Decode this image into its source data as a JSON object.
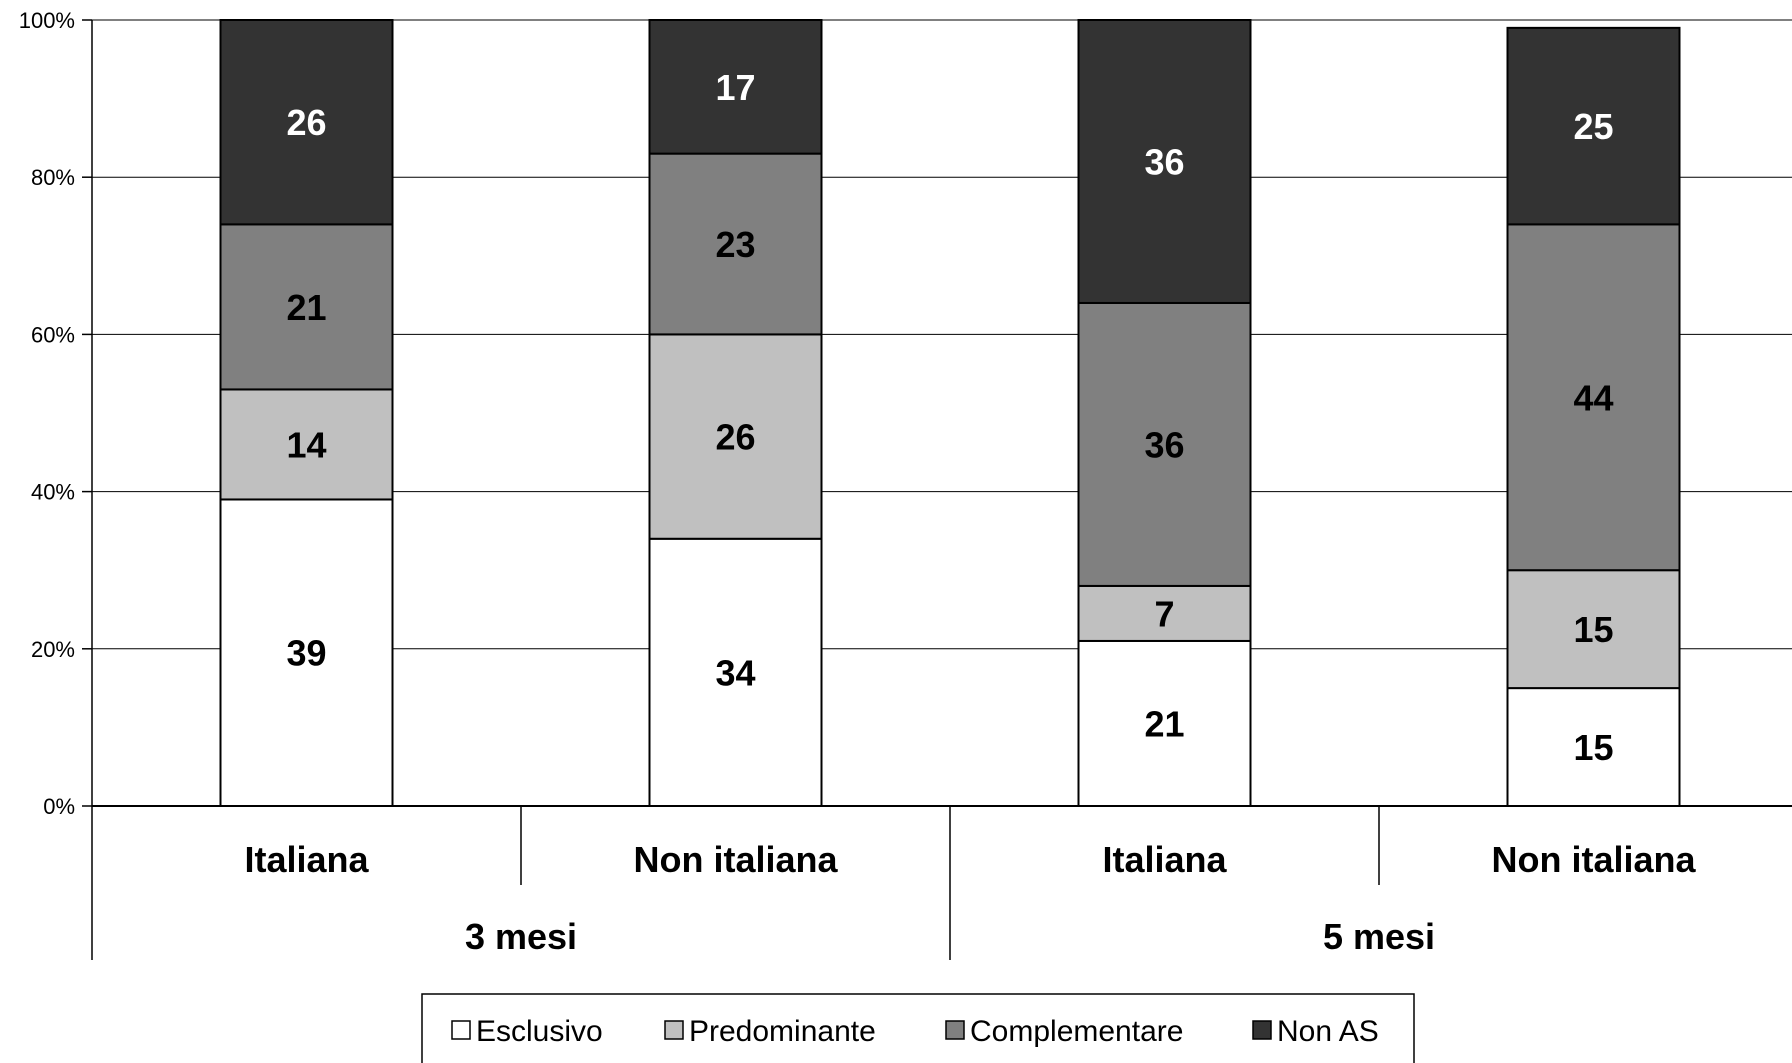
{
  "chart_data": {
    "type": "bar",
    "stacked": true,
    "percent_stacked": true,
    "title": "",
    "xlabel": "",
    "ylabel": "",
    "ylim": [
      0,
      100
    ],
    "y_ticks": [
      "0%",
      "20%",
      "40%",
      "60%",
      "80%",
      "100%"
    ],
    "grid": true,
    "legend_position": "bottom",
    "categories": [
      "Italiana",
      "Non italiana",
      "Italiana",
      "Non italiana"
    ],
    "groups": [
      {
        "label": "3 mesi",
        "categories": [
          0,
          1
        ]
      },
      {
        "label": "5 mesi",
        "categories": [
          2,
          3
        ]
      }
    ],
    "series": [
      {
        "name": "Esclusivo",
        "color": "#ffffff",
        "label_color": "#000000",
        "values": [
          39,
          34,
          21,
          15
        ]
      },
      {
        "name": "Predominante",
        "color": "#c0c0c0",
        "label_color": "#000000",
        "values": [
          14,
          26,
          7,
          15
        ]
      },
      {
        "name": "Complementare",
        "color": "#808080",
        "label_color": "#000000",
        "values": [
          21,
          23,
          36,
          44
        ]
      },
      {
        "name": "Non AS",
        "color": "#333333",
        "label_color": "#ffffff",
        "values": [
          26,
          17,
          36,
          25
        ]
      }
    ]
  }
}
